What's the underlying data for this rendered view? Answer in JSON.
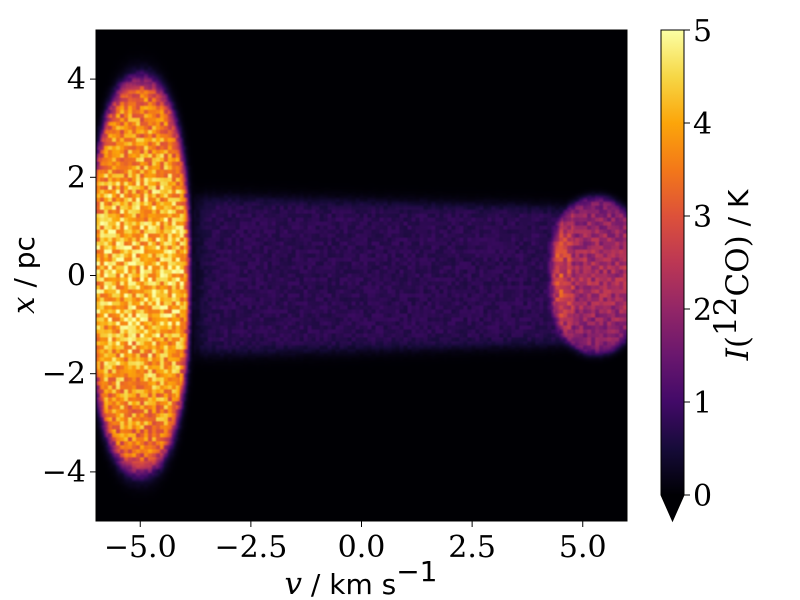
{
  "chart_data": {
    "type": "heatmap",
    "title": "",
    "xlabel": {
      "symbol": "v",
      "sep": " / ",
      "unit": "km s",
      "unit_exp": "−1"
    },
    "ylabel": {
      "symbol": "x",
      "sep": " / ",
      "unit": "pc"
    },
    "xlim": [
      -6,
      6
    ],
    "ylim": [
      -5,
      5
    ],
    "xticks": [
      -5.0,
      -2.5,
      0.0,
      2.5,
      5.0
    ],
    "xtick_labels": [
      "−5.0",
      "−2.5",
      "0.0",
      "2.5",
      "5.0"
    ],
    "yticks": [
      -4,
      -2,
      0,
      2,
      4
    ],
    "ytick_labels": [
      "−4",
      "−2",
      "0",
      "2",
      "4"
    ],
    "colormap": "inferno",
    "colorbar": {
      "label": {
        "symbol": "I",
        "open": "(",
        "iso_mass": "12",
        "species": "CO",
        "close": ")",
        "sep": " / ",
        "unit": "K"
      },
      "range": [
        0,
        5
      ],
      "ticks": [
        0,
        1,
        2,
        3,
        4,
        5
      ],
      "tick_labels": [
        "0",
        "1",
        "2",
        "3",
        "4",
        "5"
      ],
      "extend": "min"
    },
    "components": [
      {
        "name": "",
        "shape": "blob",
        "v_center": -5.0,
        "v_halfwidth": 1.1,
        "x_center": 0.0,
        "x_halfwidth": 4.0,
        "peak_intensity": 4.3
      },
      {
        "name": "",
        "shape": "band",
        "v_range": [
          -3.5,
          4.5
        ],
        "x_halfwidth_start": 1.6,
        "x_halfwidth_end": 1.4,
        "peak_intensity": 0.75
      },
      {
        "name": "",
        "shape": "blob",
        "v_center": 5.3,
        "v_halfwidth": 1.0,
        "x_center": 0.0,
        "x_halfwidth": 1.6,
        "peak_intensity": 2.2
      }
    ]
  }
}
